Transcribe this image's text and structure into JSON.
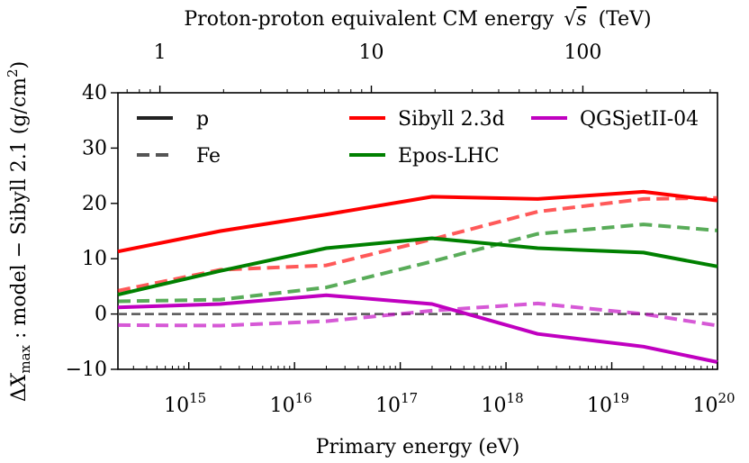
{
  "chart_data": {
    "type": "line",
    "title": "",
    "xlabel_bottom": "Primary energy (eV)",
    "xlabel_top_prefix": "Proton-proton equivalent CM energy",
    "xlabel_top_sqrt": "s",
    "xlabel_top_suffix": "(TeV)",
    "ylabel": "ΔX_max : model − Sibyll 2.1 (g/cm²)",
    "ylabel_delta": "Δ",
    "ylabel_x": "X",
    "ylabel_sub": "max",
    "ylabel_rest": " : model − Sibyll 2.1 (g/cm",
    "ylabel_sup": "2",
    "ylabel_close": ")",
    "xscale": "log",
    "xlim_log10": [
      14.33,
      20.0
    ],
    "ylim": [
      -10,
      40
    ],
    "yticks": [
      -10,
      0,
      10,
      20,
      30,
      40
    ],
    "bottom_ticks": [
      {
        "base": "10",
        "exp": "15",
        "log": 15
      },
      {
        "base": "10",
        "exp": "16",
        "log": 16
      },
      {
        "base": "10",
        "exp": "17",
        "log": 17
      },
      {
        "base": "10",
        "exp": "18",
        "log": 18
      },
      {
        "base": "10",
        "exp": "19",
        "log": 19
      },
      {
        "base": "10",
        "exp": "20",
        "log": 20
      }
    ],
    "top_ticks": [
      {
        "label": "1",
        "tev": 1
      },
      {
        "label": "10",
        "tev": 10
      },
      {
        "label": "100",
        "tev": 100
      }
    ],
    "reference_line": {
      "y": 0,
      "color": "#555555",
      "style": "dashed"
    },
    "x_log10": [
      14.33,
      15.3,
      16.3,
      17.3,
      18.3,
      19.3,
      20.0
    ],
    "series": [
      {
        "name": "Sibyll 2.3d",
        "primary": "p",
        "color": "#ff0000",
        "opacity": 1.0,
        "dashed": false,
        "values": [
          11.3,
          15.0,
          18.0,
          21.2,
          20.8,
          22.1,
          20.5
        ]
      },
      {
        "name": "Sibyll 2.3d",
        "primary": "Fe",
        "color": "#ff0000",
        "opacity": 0.65,
        "dashed": true,
        "values": [
          4.2,
          8.0,
          8.8,
          13.5,
          18.5,
          20.8,
          21.0
        ]
      },
      {
        "name": "Epos-LHC",
        "primary": "p",
        "color": "#008000",
        "opacity": 1.0,
        "dashed": false,
        "values": [
          3.5,
          7.8,
          11.9,
          13.7,
          11.9,
          11.1,
          8.6
        ]
      },
      {
        "name": "Epos-LHC",
        "primary": "Fe",
        "color": "#008000",
        "opacity": 0.65,
        "dashed": true,
        "values": [
          2.3,
          2.6,
          4.8,
          9.5,
          14.5,
          16.2,
          15.1
        ]
      },
      {
        "name": "QGSjetII-04",
        "primary": "p",
        "color": "#c000c0",
        "opacity": 1.0,
        "dashed": false,
        "values": [
          1.2,
          1.8,
          3.4,
          1.8,
          -3.6,
          -5.9,
          -8.7
        ]
      },
      {
        "name": "QGSjetII-04",
        "primary": "Fe",
        "color": "#c000c0",
        "opacity": 0.65,
        "dashed": true,
        "values": [
          -2.0,
          -2.1,
          -1.3,
          0.6,
          1.9,
          0.0,
          -2.1
        ]
      }
    ],
    "legend_primary": [
      {
        "label": "p",
        "dashed": false
      },
      {
        "label": "Fe",
        "dashed": true
      }
    ],
    "legend_model": [
      {
        "label": "Sibyll 2.3d",
        "color": "#ff0000"
      },
      {
        "label": "QGSjetII-04",
        "color": "#c000c0"
      },
      {
        "label": "Epos-LHC",
        "color": "#008000"
      }
    ]
  }
}
